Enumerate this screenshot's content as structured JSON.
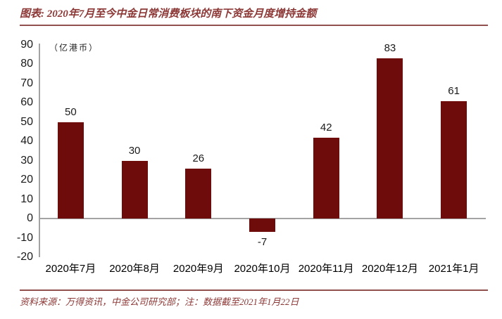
{
  "header": {
    "title": "图表: 2020年7月至今中金日常消费板块的南下资金月度增持金额"
  },
  "footer": {
    "text": "资料来源：万得资讯，中金公司研究部；注：数据截至2021年1月22日"
  },
  "colors": {
    "bar": "#6E0B0B",
    "accent_text": "#8C3836",
    "rule": "#91504E",
    "axis_line": "#A3A3A3",
    "label_text": "#1A1A1A"
  },
  "chart_data": {
    "type": "bar",
    "title": "2020年7月至今中金日常消费板块的南下资金月度增持金额",
    "unit_label": "（亿港币）",
    "categories": [
      "2020年7月",
      "2020年8月",
      "2020年9月",
      "2020年10月",
      "2020年11月",
      "2020年12月",
      "2021年1月"
    ],
    "values": [
      50,
      30,
      26,
      -7,
      42,
      83,
      61
    ],
    "data_labels": [
      50,
      30,
      26,
      -7,
      42,
      83,
      61
    ],
    "ylim": [
      -20,
      90
    ],
    "ytick_step": 10,
    "yticks": [
      90,
      80,
      70,
      60,
      50,
      40,
      30,
      20,
      10,
      0,
      -10,
      -20
    ],
    "grid": false,
    "legend": "none",
    "xlabel": "",
    "ylabel": ""
  }
}
